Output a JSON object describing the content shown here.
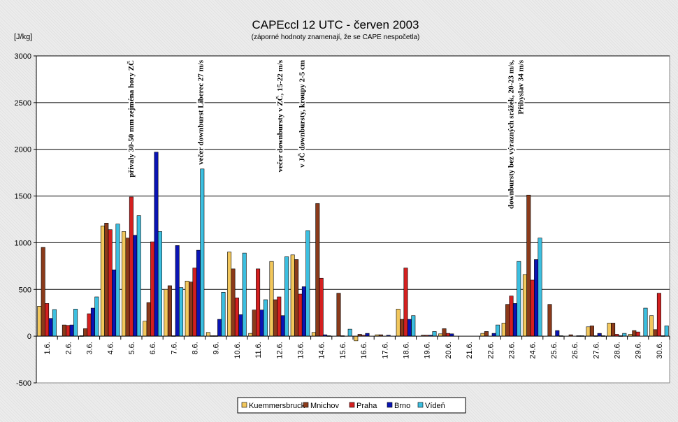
{
  "chart_data": {
    "type": "bar",
    "title": "CAPEccl 12 UTC - červen 2003",
    "subtitle": "(záporné hodnoty znamenají, že se CAPE nespočetla)",
    "ylabel": "[J/kg]",
    "xlabel": "",
    "ylim": [
      -500,
      3000
    ],
    "yticks": [
      -500,
      0,
      500,
      1000,
      1500,
      2000,
      2500,
      3000
    ],
    "grid": true,
    "legend_position": "bottom",
    "categories": [
      "1.6.",
      "2.6.",
      "3.6.",
      "4.6.",
      "5.6.",
      "6.6.",
      "7.6.",
      "8.6.",
      "9.6.",
      "10.6.",
      "11.6.",
      "12.6.",
      "13.6.",
      "14.6.",
      "15.6.",
      "16.6.",
      "17.6.",
      "18.6.",
      "19.6.",
      "20.6.",
      "21.6.",
      "22.6.",
      "23.6.",
      "24.6.",
      "25.6.",
      "26.6.",
      "27.6.",
      "28.6.",
      "29.6.",
      "30.6."
    ],
    "series": [
      {
        "name": "Kuemmersbruck",
        "color": "#f2c75c",
        "values": [
          320,
          0,
          5,
          1180,
          1120,
          160,
          500,
          590,
          40,
          900,
          30,
          800,
          870,
          40,
          0,
          -50,
          15,
          290,
          0,
          25,
          0,
          30,
          140,
          660,
          0,
          0,
          100,
          140,
          20,
          220
        ]
      },
      {
        "name": "Mnichov",
        "color": "#8b3a1a",
        "values": [
          950,
          120,
          80,
          1210,
          1050,
          360,
          540,
          580,
          5,
          720,
          280,
          390,
          820,
          1420,
          460,
          20,
          15,
          180,
          10,
          80,
          0,
          50,
          340,
          1510,
          340,
          15,
          110,
          140,
          60,
          70
        ]
      },
      {
        "name": "Praha",
        "color": "#d42020",
        "values": [
          350,
          115,
          240,
          1140,
          1490,
          1010,
          5,
          730,
          5,
          410,
          720,
          420,
          450,
          620,
          5,
          10,
          0,
          730,
          10,
          30,
          0,
          0,
          430,
          600,
          0,
          0,
          5,
          20,
          45,
          460
        ]
      },
      {
        "name": "Brno",
        "color": "#0a14b4",
        "values": [
          190,
          120,
          300,
          710,
          1080,
          1970,
          970,
          920,
          180,
          230,
          280,
          220,
          530,
          15,
          0,
          30,
          10,
          180,
          10,
          25,
          0,
          30,
          350,
          820,
          60,
          5,
          30,
          5,
          0,
          5
        ]
      },
      {
        "name": "Vídeň",
        "color": "#3cbfe0",
        "values": [
          285,
          290,
          420,
          1200,
          1290,
          1120,
          520,
          1790,
          470,
          890,
          390,
          850,
          1130,
          5,
          75,
          0,
          0,
          220,
          50,
          0,
          0,
          120,
          800,
          1050,
          5,
          5,
          5,
          30,
          300,
          110
        ]
      }
    ],
    "annotations": [
      {
        "day": 4.6,
        "lines": [
          "přívaly 30-50 mm zejména hory ZČ"
        ]
      },
      {
        "day": 7.9,
        "lines": [
          "večer downburst Liberec 27 m/s"
        ]
      },
      {
        "day": 11.65,
        "lines": [
          "večer downbursty v ZČ, 15-22 m/s"
        ]
      },
      {
        "day": 12.7,
        "lines": [
          "v JČ downbursty, kroupy 2-5 cm"
        ]
      },
      {
        "day": 22.6,
        "lines": [
          "downbursty bez výrazných srážek, 20-23 m/s,",
          "Přibyslav 34 m/s"
        ]
      }
    ]
  }
}
